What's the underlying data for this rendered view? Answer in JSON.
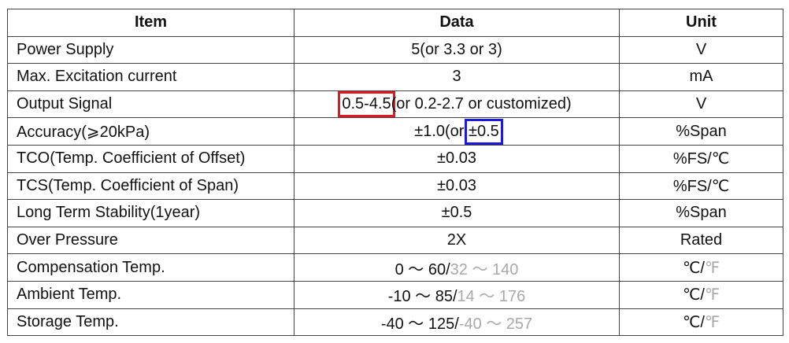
{
  "headers": {
    "item": "Item",
    "data": "Data",
    "unit": "Unit"
  },
  "rows": [
    {
      "item": "Power Supply",
      "data": "5(or 3.3 or 3)",
      "unit": "V"
    },
    {
      "item": "Max. Excitation current",
      "data": "3",
      "unit": "mA"
    },
    {
      "item": "Output Signal",
      "data_main": "0.5-4.5",
      "data_rest": "(or 0.2-2.7 or customized)",
      "unit": "V"
    },
    {
      "item": "Accuracy(⩾20kPa)",
      "data_main": "±1.0(or ",
      "data_hl": "±0.5",
      "unit": "%Span"
    },
    {
      "item": "TCO(Temp. Coefficient of Offset)",
      "data": "±0.03",
      "unit": "%FS/℃"
    },
    {
      "item": "TCS(Temp. Coefficient of Span)",
      "data": "±0.03",
      "unit": "%FS/℃"
    },
    {
      "item": "Long Term Stability(1year)",
      "data": "±0.5",
      "unit": "%Span"
    },
    {
      "item": "Over Pressure",
      "data": "2X",
      "unit": "Rated"
    },
    {
      "item": "Compensation Temp.",
      "data_c": "0 ～ 60/",
      "data_f": "32 ～ 140",
      "unit_c": "℃/",
      "unit_f": "℉"
    },
    {
      "item": "Ambient Temp.",
      "data_c": "-10 ～ 85/",
      "data_f": "14 ～ 176",
      "unit_c": "℃/",
      "unit_f": "℉"
    },
    {
      "item": "Storage Temp.",
      "data_c": "-40 ～ 125/",
      "data_f": "-40 ～ 257",
      "unit_c": "℃/",
      "unit_f": "℉"
    }
  ],
  "colors": {
    "border": "#444444",
    "fahrenheit": "#a9a9a9",
    "highlight_red": "#e0191f",
    "highlight_blue": "#1a1ad8"
  }
}
